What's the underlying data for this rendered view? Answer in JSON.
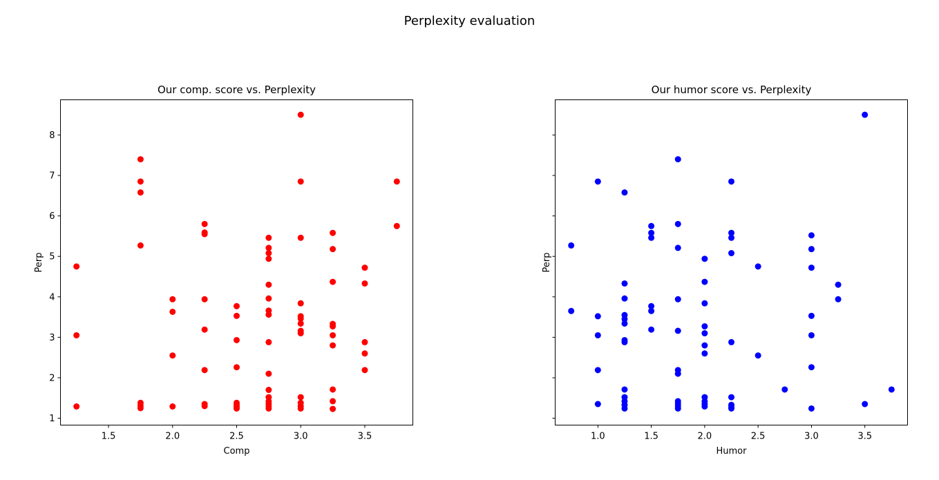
{
  "figure": {
    "suptitle": "Perplexity evaluation"
  },
  "chart_data": [
    {
      "type": "scatter",
      "title": "Our comp. score vs. Perplexity",
      "xlabel": "Comp",
      "ylabel": "Perp",
      "color": "#ff0000",
      "xlim": [
        1.125,
        3.875
      ],
      "ylim": [
        0.83,
        8.87
      ],
      "xticks": [
        1.5,
        2.0,
        2.5,
        3.0,
        3.5
      ],
      "yticks": [
        1,
        2,
        3,
        4,
        5,
        6,
        7,
        8
      ],
      "points": [
        [
          1.25,
          4.75
        ],
        [
          1.25,
          3.05
        ],
        [
          1.25,
          1.29
        ],
        [
          1.75,
          7.4
        ],
        [
          1.75,
          6.85
        ],
        [
          1.75,
          6.58
        ],
        [
          1.75,
          5.27
        ],
        [
          1.75,
          1.38
        ],
        [
          1.75,
          1.31
        ],
        [
          1.75,
          1.25
        ],
        [
          2.0,
          3.94
        ],
        [
          2.0,
          3.63
        ],
        [
          2.0,
          2.55
        ],
        [
          2.0,
          1.29
        ],
        [
          2.25,
          5.8
        ],
        [
          2.25,
          5.59
        ],
        [
          2.25,
          5.55
        ],
        [
          2.25,
          3.94
        ],
        [
          2.25,
          3.19
        ],
        [
          2.25,
          2.19
        ],
        [
          2.25,
          1.35
        ],
        [
          2.25,
          1.3
        ],
        [
          2.5,
          3.77
        ],
        [
          2.5,
          3.53
        ],
        [
          2.5,
          2.93
        ],
        [
          2.5,
          2.26
        ],
        [
          2.5,
          1.38
        ],
        [
          2.5,
          1.33
        ],
        [
          2.5,
          1.28
        ],
        [
          2.5,
          1.24
        ],
        [
          2.75,
          5.46
        ],
        [
          2.75,
          5.21
        ],
        [
          2.75,
          5.08
        ],
        [
          2.75,
          4.94
        ],
        [
          2.75,
          4.3
        ],
        [
          2.75,
          3.96
        ],
        [
          2.75,
          3.66
        ],
        [
          2.75,
          3.56
        ],
        [
          2.75,
          2.88
        ],
        [
          2.75,
          2.1
        ],
        [
          2.75,
          1.7
        ],
        [
          2.75,
          1.52
        ],
        [
          2.75,
          1.42
        ],
        [
          2.75,
          1.36
        ],
        [
          2.75,
          1.3
        ],
        [
          2.75,
          1.24
        ],
        [
          3.0,
          8.5
        ],
        [
          3.0,
          6.85
        ],
        [
          3.0,
          5.46
        ],
        [
          3.0,
          3.84
        ],
        [
          3.0,
          3.52
        ],
        [
          3.0,
          3.46
        ],
        [
          3.0,
          3.34
        ],
        [
          3.0,
          3.16
        ],
        [
          3.0,
          3.1
        ],
        [
          3.0,
          1.52
        ],
        [
          3.0,
          1.38
        ],
        [
          3.0,
          1.3
        ],
        [
          3.0,
          1.24
        ],
        [
          3.25,
          5.58
        ],
        [
          3.25,
          5.18
        ],
        [
          3.25,
          4.37
        ],
        [
          3.25,
          3.33
        ],
        [
          3.25,
          3.27
        ],
        [
          3.25,
          3.05
        ],
        [
          3.25,
          2.8
        ],
        [
          3.25,
          1.71
        ],
        [
          3.25,
          1.42
        ],
        [
          3.25,
          1.23
        ],
        [
          3.5,
          4.72
        ],
        [
          3.5,
          4.33
        ],
        [
          3.5,
          2.88
        ],
        [
          3.5,
          2.6
        ],
        [
          3.5,
          2.19
        ],
        [
          3.75,
          6.85
        ],
        [
          3.75,
          5.75
        ]
      ]
    },
    {
      "type": "scatter",
      "title": "Our humor score vs. Perplexity",
      "xlabel": "Humor",
      "ylabel": "Perp",
      "color": "#0000ff",
      "xlim": [
        0.6,
        3.9
      ],
      "ylim": [
        0.83,
        8.87
      ],
      "xticks": [
        1.0,
        1.5,
        2.0,
        2.5,
        3.0,
        3.5
      ],
      "yticks": [
        1,
        2,
        3,
        4,
        5,
        6,
        7,
        8
      ],
      "points": [
        [
          0.75,
          5.27
        ],
        [
          0.75,
          3.65
        ],
        [
          1.0,
          6.85
        ],
        [
          1.0,
          3.52
        ],
        [
          1.0,
          3.05
        ],
        [
          1.0,
          2.19
        ],
        [
          1.0,
          1.35
        ],
        [
          1.25,
          6.58
        ],
        [
          1.25,
          4.33
        ],
        [
          1.25,
          3.96
        ],
        [
          1.25,
          3.55
        ],
        [
          1.25,
          3.45
        ],
        [
          1.25,
          3.34
        ],
        [
          1.25,
          2.93
        ],
        [
          1.25,
          2.88
        ],
        [
          1.25,
          1.71
        ],
        [
          1.25,
          1.52
        ],
        [
          1.25,
          1.42
        ],
        [
          1.25,
          1.33
        ],
        [
          1.25,
          1.24
        ],
        [
          1.5,
          5.75
        ],
        [
          1.5,
          5.58
        ],
        [
          1.5,
          5.46
        ],
        [
          1.5,
          3.77
        ],
        [
          1.5,
          3.65
        ],
        [
          1.5,
          3.19
        ],
        [
          1.75,
          7.4
        ],
        [
          1.75,
          5.8
        ],
        [
          1.75,
          5.21
        ],
        [
          1.75,
          3.94
        ],
        [
          1.75,
          3.16
        ],
        [
          1.75,
          2.19
        ],
        [
          1.75,
          2.1
        ],
        [
          1.75,
          1.42
        ],
        [
          1.75,
          1.36
        ],
        [
          1.75,
          1.3
        ],
        [
          1.75,
          1.24
        ],
        [
          2.0,
          4.94
        ],
        [
          2.0,
          4.37
        ],
        [
          2.0,
          3.84
        ],
        [
          2.0,
          3.27
        ],
        [
          2.0,
          3.1
        ],
        [
          2.0,
          2.8
        ],
        [
          2.0,
          2.6
        ],
        [
          2.0,
          1.52
        ],
        [
          2.0,
          1.42
        ],
        [
          2.0,
          1.35
        ],
        [
          2.0,
          1.29
        ],
        [
          2.25,
          6.85
        ],
        [
          2.25,
          5.58
        ],
        [
          2.25,
          5.46
        ],
        [
          2.25,
          5.08
        ],
        [
          2.25,
          2.88
        ],
        [
          2.25,
          1.52
        ],
        [
          2.25,
          1.33
        ],
        [
          2.25,
          1.28
        ],
        [
          2.25,
          1.24
        ],
        [
          2.5,
          4.75
        ],
        [
          2.5,
          2.55
        ],
        [
          2.75,
          1.71
        ],
        [
          3.0,
          5.52
        ],
        [
          3.0,
          5.18
        ],
        [
          3.0,
          4.72
        ],
        [
          3.0,
          3.53
        ],
        [
          3.0,
          3.05
        ],
        [
          3.0,
          2.26
        ],
        [
          3.0,
          1.24
        ],
        [
          3.25,
          4.3
        ],
        [
          3.25,
          3.94
        ],
        [
          3.5,
          8.5
        ],
        [
          3.5,
          1.35
        ],
        [
          3.75,
          1.71
        ]
      ]
    }
  ]
}
